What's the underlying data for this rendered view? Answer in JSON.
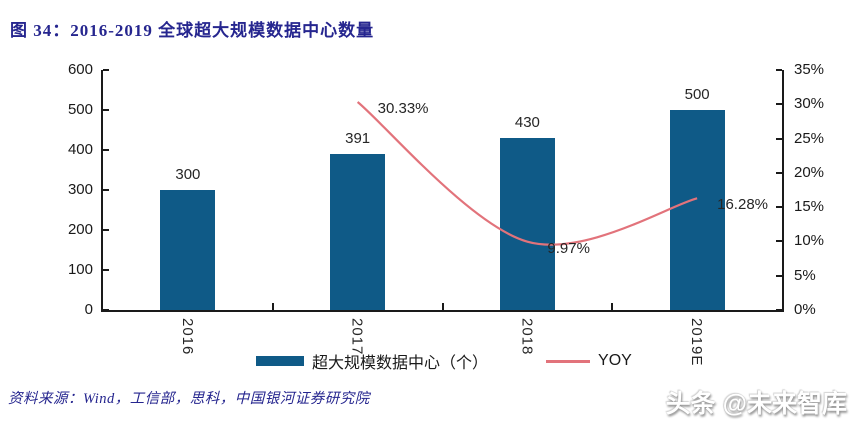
{
  "title": "图 34：2016-2019 全球超大规模数据中心数量",
  "source": "资料来源：Wind，工信部，思科，中国银河证券研究院",
  "watermark": "头条 @未来智库",
  "colors": {
    "bar": "#0F5A87",
    "line": "#E2737B",
    "navy": "#26268F",
    "axis": "#1A1A1A"
  },
  "chart_data": {
    "type": "bar",
    "subtype": "bar+line combo, dual axis",
    "title": "图 34：2016-2019 全球超大规模数据中心数量",
    "categories": [
      "2016",
      "2017",
      "2018",
      "2019E"
    ],
    "series": [
      {
        "name": "超大规模数据中心（个）",
        "type": "bar",
        "axis": "left",
        "values": [
          300,
          391,
          430,
          500
        ],
        "labels": [
          "300",
          "391",
          "430",
          "500"
        ]
      },
      {
        "name": "YOY",
        "type": "line",
        "axis": "right",
        "values": [
          null,
          30.33,
          9.97,
          16.28
        ],
        "labels": [
          null,
          "30.33%",
          "9.97%",
          "16.28%"
        ]
      }
    ],
    "left_axis": {
      "min": 0,
      "max": 600,
      "step": 100,
      "ticks": [
        "600",
        "500",
        "400",
        "300",
        "200",
        "100",
        "0"
      ]
    },
    "right_axis": {
      "min": 0,
      "max": 35,
      "step": 5,
      "ticks": [
        "35%",
        "30%",
        "25%",
        "20%",
        "15%",
        "10%",
        "5%",
        "0%"
      ]
    },
    "grid": false,
    "legend_position": "bottom"
  }
}
